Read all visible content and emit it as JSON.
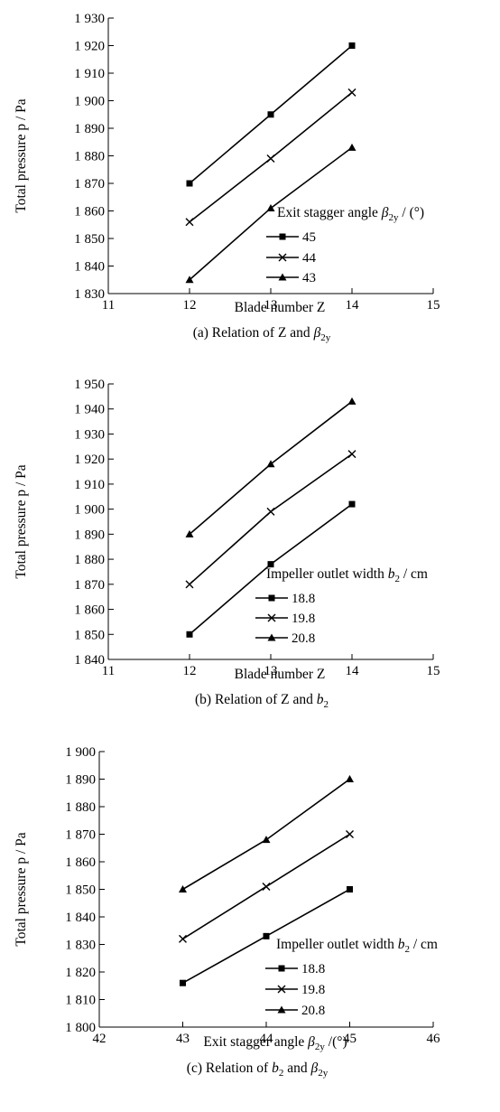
{
  "chart_data": [
    {
      "type": "line",
      "caption": "(a)  Relation of Z and β2y",
      "xlabel": "Blade number Z",
      "ylabel": "Total pressure  p / Pa",
      "xlim": [
        11,
        15
      ],
      "ylim": [
        1830,
        1930
      ],
      "x_ticks": [
        "11",
        "12",
        "13",
        "14",
        "15"
      ],
      "y_ticks": [
        "1 830",
        "1 840",
        "1 850",
        "1 860",
        "1 870",
        "1 880",
        "1 890",
        "1 900",
        "1 910",
        "1 920",
        "1 930"
      ],
      "legend_title": "Exit stagger angle β2y / (°)",
      "legend_position": "right",
      "x": [
        12,
        13,
        14
      ],
      "series": [
        {
          "name": "45",
          "marker": "square",
          "values": [
            1870,
            1895,
            1920
          ]
        },
        {
          "name": "44",
          "marker": "x",
          "values": [
            1856,
            1879,
            1903
          ]
        },
        {
          "name": "43",
          "marker": "triangle",
          "values": [
            1835,
            1861,
            1883
          ]
        }
      ]
    },
    {
      "type": "line",
      "caption": "(b)  Relation of  Z and b2",
      "xlabel": "Blade number Z",
      "ylabel": "Total pressure  p / Pa",
      "xlim": [
        11,
        15
      ],
      "ylim": [
        1840,
        1950
      ],
      "x_ticks": [
        "11",
        "12",
        "13",
        "14",
        "15"
      ],
      "y_ticks": [
        "1 840",
        "1 850",
        "1 860",
        "1 870",
        "1 880",
        "1 890",
        "1 900",
        "1 910",
        "1 920",
        "1 930",
        "1 940",
        "1 950"
      ],
      "legend_title": "Impeller outlet width b2 / cm",
      "legend_position": "right",
      "x": [
        12,
        13,
        14
      ],
      "series": [
        {
          "name": "18.8",
          "marker": "square",
          "values": [
            1850,
            1878,
            1902
          ]
        },
        {
          "name": "19.8",
          "marker": "x",
          "values": [
            1870,
            1899,
            1922
          ]
        },
        {
          "name": "20.8",
          "marker": "triangle",
          "values": [
            1890,
            1918,
            1943
          ]
        }
      ]
    },
    {
      "type": "line",
      "caption": "(c) Relation of  b2 and β2y",
      "xlabel": "Exit stagger angle β2y /(°)",
      "ylabel": "Total pressure  p / Pa",
      "xlim": [
        42,
        46
      ],
      "ylim": [
        1800,
        1900
      ],
      "x_ticks": [
        "42",
        "43",
        "44",
        "45",
        "46"
      ],
      "y_ticks": [
        "1 800",
        "1 810",
        "1 820",
        "1 830",
        "1 840",
        "1 850",
        "1 860",
        "1 870",
        "1 880",
        "1 890",
        "1 900"
      ],
      "legend_title": "Impeller outlet width b2 / cm",
      "legend_position": "right",
      "x": [
        43,
        44,
        45
      ],
      "series": [
        {
          "name": "18.8",
          "marker": "square",
          "values": [
            1816,
            1833,
            1850
          ]
        },
        {
          "name": "19.8",
          "marker": "x",
          "values": [
            1832,
            1851,
            1870
          ]
        },
        {
          "name": "20.8",
          "marker": "triangle",
          "values": [
            1850,
            1868,
            1890
          ]
        }
      ]
    }
  ]
}
